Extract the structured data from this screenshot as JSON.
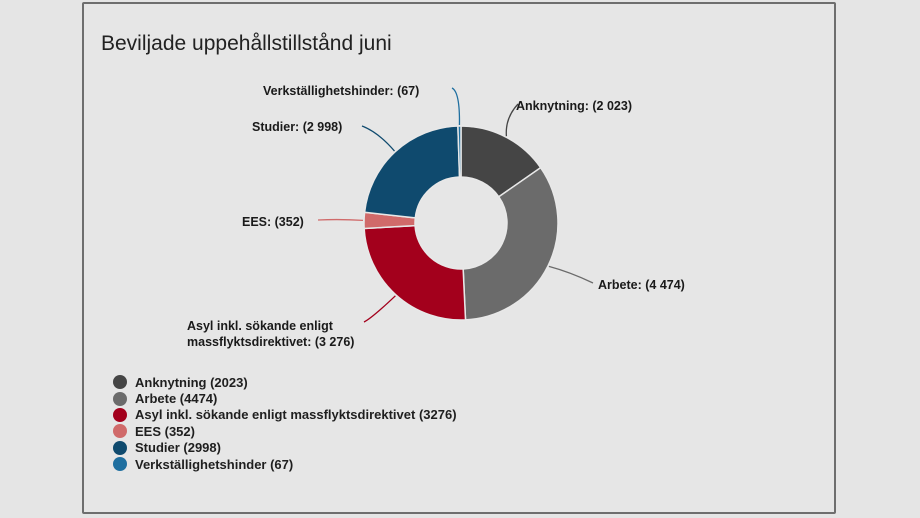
{
  "chart_data": {
    "type": "pie",
    "variant": "donut",
    "title": "Beviljade uppehållstillstånd juni",
    "categories": [
      "Anknytning",
      "Arbete",
      "Asyl inkl. sökande enligt massflyktsdirektivet",
      "EES",
      "Studier",
      "Verkställighetshinder"
    ],
    "values": [
      2023,
      4474,
      3276,
      352,
      2998,
      67
    ],
    "colors": [
      "#454545",
      "#6b6b6b",
      "#a3001c",
      "#d06a6a",
      "#0f4a6e",
      "#1f6fa0"
    ],
    "data_labels": [
      "Anknytning: (2 023)",
      "Arbete: (4 474)",
      "Asyl inkl. sökande enligt massflyktsdirektivet: (3 276)",
      "EES: (352)",
      "Studier: (2 998)",
      "Verkställighetshinder: (67)"
    ],
    "legend_labels": [
      "Anknytning (2023)",
      "Arbete (4474)",
      "Asyl inkl. sökande enligt massflyktsdirektivet (3276)",
      "EES (352)",
      "Studier (2998)",
      "Verkställighetshinder (67)"
    ],
    "legend_position": "bottom-left",
    "start_angle": 0,
    "direction": "clockwise"
  },
  "card": {
    "title": "Beviljade uppehållstillstånd juni"
  }
}
